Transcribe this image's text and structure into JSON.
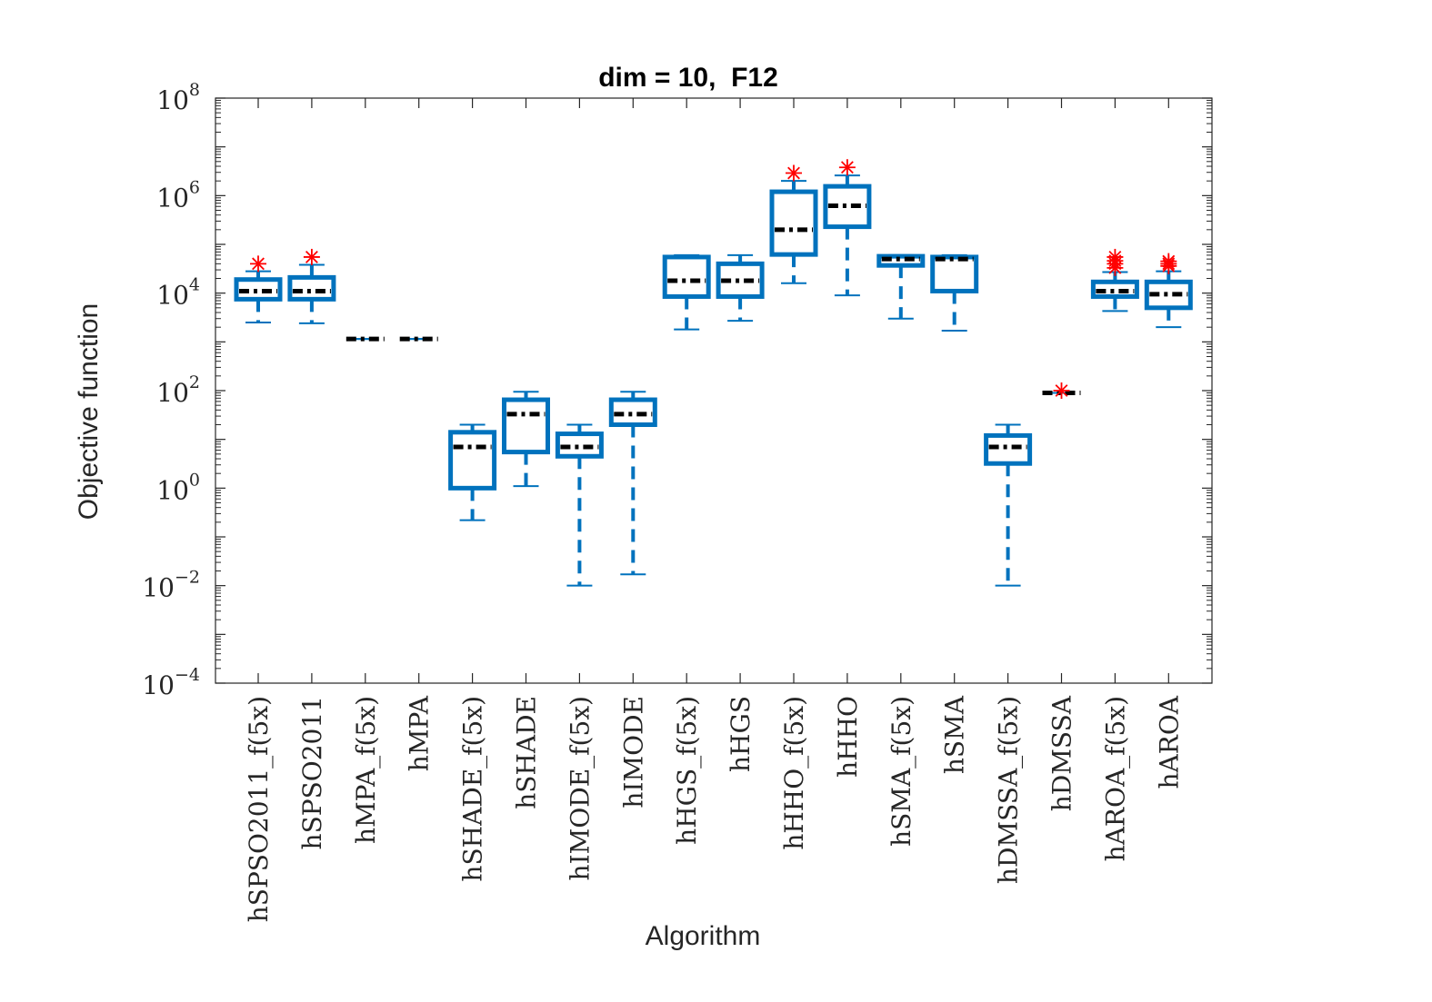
{
  "chart_data": {
    "type": "boxplot",
    "title": "dim = 10,  F12",
    "xlabel": "Algorithm",
    "ylabel": "Objective function",
    "yscale": "log",
    "ylim_exponent": [
      -4,
      8
    ],
    "ytick_exponents": [
      -4,
      -2,
      0,
      2,
      4,
      6,
      8
    ],
    "ytick_base": "10",
    "grid": false,
    "colors": {
      "box": "#0072BD",
      "median": "#000000",
      "outlier": "#FF0000",
      "axis": "#262626"
    },
    "categories": [
      "hSPSO2011_f(5x)",
      "hSPSO2011",
      "hMPA_f(5x)",
      "hMPA",
      "hSHADE_f(5x)",
      "hSHADE",
      "hIMODE_f(5x)",
      "hIMODE",
      "hHGS_f(5x)",
      "hHGS",
      "hHHO_f(5x)",
      "hHHO",
      "hSMA_f(5x)",
      "hSMA",
      "hDMSSA_f(5x)",
      "hDMSSA",
      "hAROA_f(5x)",
      "hAROA"
    ],
    "boxes": [
      {
        "whisker_low": 2500,
        "q1": 7500,
        "median": 11000,
        "q3": 19000,
        "whisker_high": 28000,
        "outliers": [
          40000
        ]
      },
      {
        "whisker_low": 2400,
        "q1": 7500,
        "median": 11000,
        "q3": 21000,
        "whisker_high": 38000,
        "outliers": [
          55000
        ]
      },
      {
        "whisker_low": 1150,
        "q1": 1150,
        "median": 1150,
        "q3": 1150,
        "whisker_high": 1150,
        "outliers": []
      },
      {
        "whisker_low": 1150,
        "q1": 1150,
        "median": 1150,
        "q3": 1150,
        "whisker_high": 1150,
        "outliers": []
      },
      {
        "whisker_low": 0.22,
        "q1": 1.0,
        "median": 7.0,
        "q3": 14,
        "whisker_high": 20,
        "outliers": []
      },
      {
        "whisker_low": 1.1,
        "q1": 5.5,
        "median": 33,
        "q3": 65,
        "whisker_high": 95,
        "outliers": []
      },
      {
        "whisker_low": 0.01,
        "q1": 4.5,
        "median": 7.0,
        "q3": 13,
        "whisker_high": 20,
        "outliers": []
      },
      {
        "whisker_low": 0.017,
        "q1": 20,
        "median": 33,
        "q3": 65,
        "whisker_high": 95,
        "outliers": []
      },
      {
        "whisker_low": 1800,
        "q1": 8500,
        "median": 18000,
        "q3": 55000,
        "whisker_high": 60000,
        "outliers": []
      },
      {
        "whisker_low": 2700,
        "q1": 8500,
        "median": 18000,
        "q3": 40000,
        "whisker_high": 60000,
        "outliers": []
      },
      {
        "whisker_low": 16000,
        "q1": 62000,
        "median": 200000,
        "q3": 1200000,
        "whisker_high": 2000000,
        "outliers": [
          2900000
        ]
      },
      {
        "whisker_low": 9000,
        "q1": 230000,
        "median": 620000,
        "q3": 1550000,
        "whisker_high": 2600000,
        "outliers": [
          3800000
        ]
      },
      {
        "whisker_low": 3000,
        "q1": 37000,
        "median": 50000,
        "q3": 57000,
        "whisker_high": 60000,
        "outliers": []
      },
      {
        "whisker_low": 1700,
        "q1": 11000,
        "median": 50000,
        "q3": 55000,
        "whisker_high": 60000,
        "outliers": []
      },
      {
        "whisker_low": 0.01,
        "q1": 3.2,
        "median": 7.0,
        "q3": 12,
        "whisker_high": 20,
        "outliers": []
      },
      {
        "whisker_low": 90,
        "q1": 90,
        "median": 90,
        "q3": 90,
        "whisker_high": 90,
        "outliers": [
          100
        ]
      },
      {
        "whisker_low": 4300,
        "q1": 8500,
        "median": 11000,
        "q3": 17000,
        "whisker_high": 27000,
        "outliers": [
          33000,
          40000,
          46000,
          55000
        ]
      },
      {
        "whisker_low": 2000,
        "q1": 5000,
        "median": 9500,
        "q3": 17000,
        "whisker_high": 28000,
        "outliers": [
          36000,
          40000,
          45000
        ]
      }
    ]
  }
}
